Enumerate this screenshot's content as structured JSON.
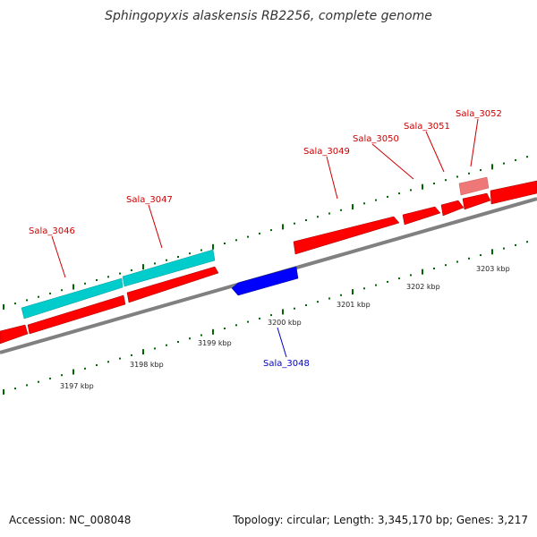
{
  "title": "Sphingopyxis alaskensis RB2256, complete genome",
  "footer": {
    "accession": "Accession: NC_008048",
    "summary": "Topology: circular; Length: 3,345,170 bp; Genes: 3,217"
  },
  "colors": {
    "forward_gene": "#ff0000",
    "reverse_gene": "#0000ff",
    "alt_gene": "#00cccc",
    "faded_gene": "#ee7777",
    "forward_label": "#cc0000",
    "reverse_label": "#0000cc",
    "tick": "#006600",
    "backbone": "#808080"
  },
  "scale_labels": [
    "3197 kbp",
    "3198 kbp",
    "3199 kbp",
    "3200 kbp",
    "3201 kbp",
    "3202 kbp",
    "3203 kbp"
  ],
  "gene_labels": {
    "sala_3046": "Sala_3046",
    "sala_3047": "Sala_3047",
    "sala_3048": "Sala_3048",
    "sala_3049": "Sala_3049",
    "sala_3050": "Sala_3050",
    "sala_3051": "Sala_3051",
    "sala_3052": "Sala_3052"
  }
}
